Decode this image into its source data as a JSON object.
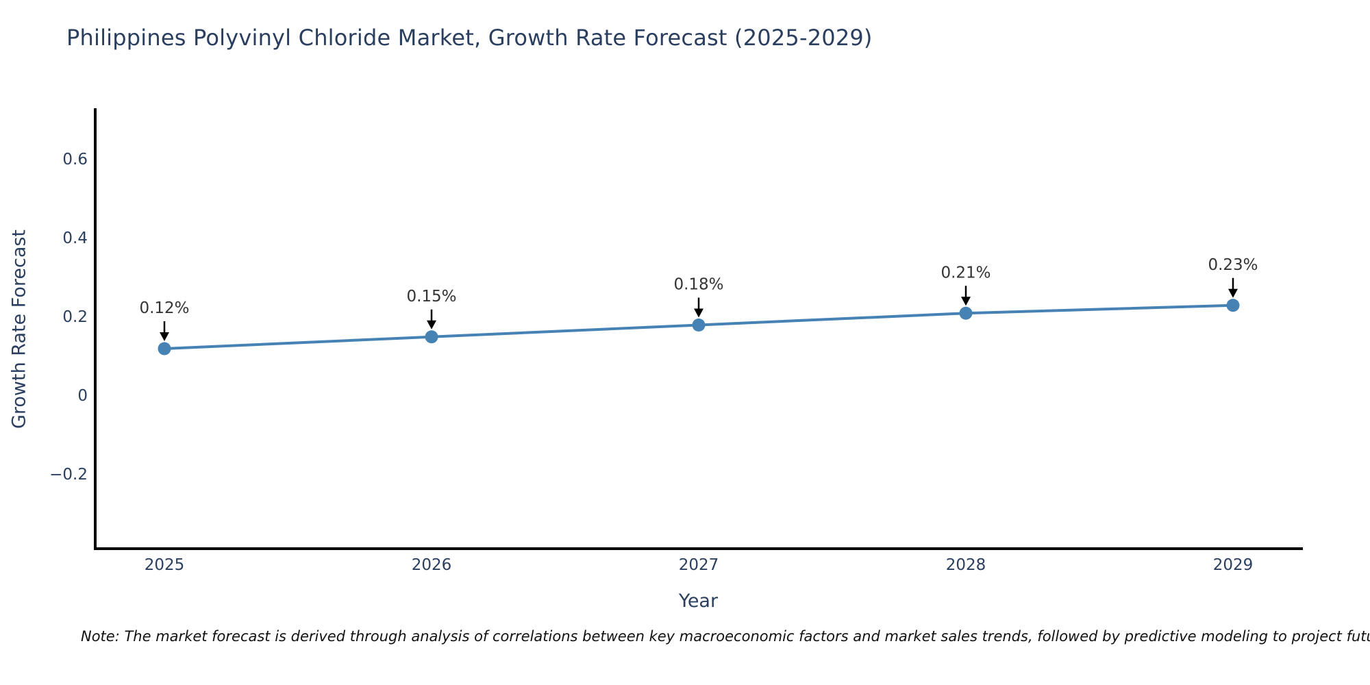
{
  "chart": {
    "title": "Philippines Polyvinyl Chloride Market, Growth Rate Forecast (2025-2029)",
    "note": "Note: The market forecast is derived through analysis of correlations between key macroeconomic factors and market sales trends, followed by predictive modeling to project future sales."
  },
  "chart_data": {
    "type": "line",
    "title": "Philippines Polyvinyl Chloride Market, Growth Rate Forecast (2025-2029)",
    "x": [
      2025,
      2026,
      2027,
      2028,
      2029
    ],
    "values": [
      0.12,
      0.15,
      0.18,
      0.21,
      0.23
    ],
    "point_labels": [
      "0.12%",
      "0.15%",
      "0.18%",
      "0.21%",
      "0.23%"
    ],
    "xlabel": "Year",
    "ylabel": "Growth Rate Forecast",
    "yticks": [
      0.6,
      0.4,
      0.2,
      0,
      -0.2
    ],
    "ytick_labels": [
      "0.6",
      "0.4",
      "0.2",
      "0",
      "−0.2"
    ],
    "xtick_labels": [
      "2025",
      "2026",
      "2027",
      "2028",
      "2029"
    ],
    "ylim": [
      -0.42,
      0.73
    ],
    "grid": false,
    "legend": "none",
    "colors": {
      "line": "#4682b4",
      "marker": "#4682b4",
      "axis": "#000000",
      "tick_label": "#2a3f5f",
      "axis_title": "#2a3f5f",
      "title": "#2a3f5f",
      "annotation_text": "#333333",
      "annotation_arrow": "#000000",
      "background": "#ffffff"
    }
  }
}
